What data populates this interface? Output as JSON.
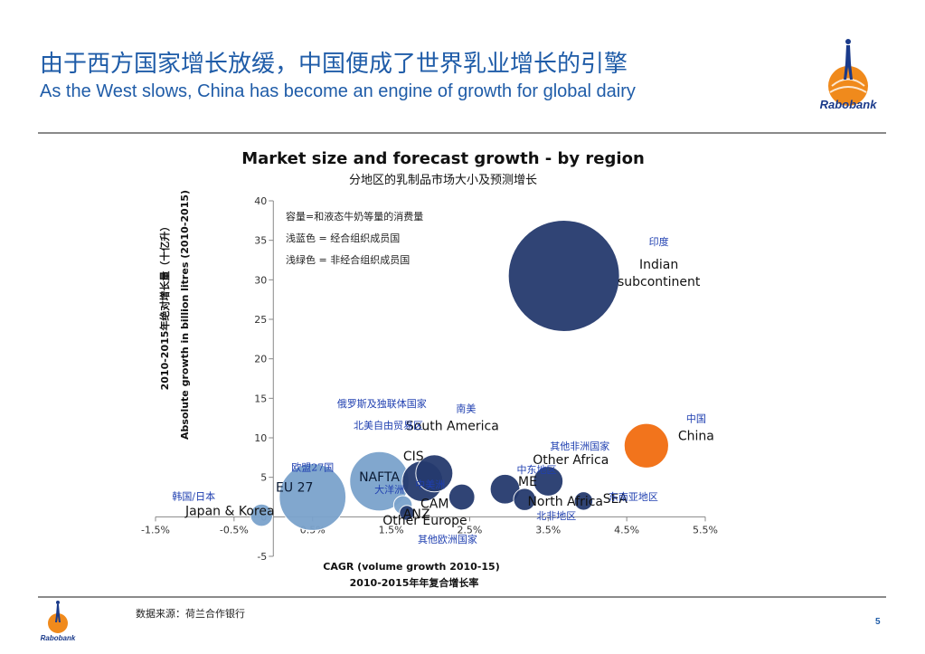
{
  "header": {
    "title_cn": "由于西方国家增长放缓，中国便成了世界乳业增长的引擎",
    "title_en": "As the West slows, China has become an engine of growth for global dairy",
    "logo_text": "Rabobank"
  },
  "footer": {
    "source": "数据来源：荷兰合作银行",
    "page_number": "5",
    "logo_text": "Rabobank"
  },
  "colors": {
    "title_blue": "#1f5ca8",
    "member_bubble": "#7ba3cc",
    "nonmember_bubble": "#253a6e",
    "china_bubble": "#f26d10",
    "cn_annotation": "#1f3fb0"
  },
  "chart_data": {
    "type": "scatter",
    "title": "Market size and forecast growth - by region",
    "subtitle": "分地区的乳制品市场大小及预测增长",
    "xlabel": "CAGR (volume growth 2010-15)",
    "xlabel_cn": "2010-2015年年复合增长率",
    "ylabel": "Absolute growth in billion litres (2010-2015)",
    "ylabel_cn": "2010-2015年绝对增长量（十亿升）",
    "xlim": [
      -1.5,
      5.5
    ],
    "ylim": [
      -5,
      40
    ],
    "x_ticks": [
      "-1.5%",
      "-0.5%",
      "0.5%",
      "1.5%",
      "2.5%",
      "3.5%",
      "4.5%",
      "5.5%"
    ],
    "y_ticks": [
      "40",
      "35",
      "30",
      "25",
      "20",
      "15",
      "10",
      "5",
      "0",
      "-5"
    ],
    "legend_notes": [
      "容量=和液态牛奶等量的消费量",
      "浅蓝色 = 经合组织成员国",
      "浅绿色 = 非经合组织成员国"
    ],
    "points": [
      {
        "label": "Indian subcontinent",
        "label_cn": "印度",
        "x": 3.7,
        "y": 30.5,
        "size": 15,
        "group": "nonmember"
      },
      {
        "label": "China",
        "label_cn": "中国",
        "x": 4.75,
        "y": 9,
        "size": 6,
        "group": "china"
      },
      {
        "label": "South America",
        "label_cn": "南美",
        "x": 2.05,
        "y": 5.5,
        "size": 5,
        "group": "nonmember"
      },
      {
        "label": "CIS",
        "label_cn": "俄罗斯及独联体国家",
        "x": 1.9,
        "y": 4.5,
        "size": 5.5,
        "group": "nonmember"
      },
      {
        "label": "Other Africa",
        "label_cn": "其他非洲国家",
        "x": 3.5,
        "y": 4.5,
        "size": 4,
        "group": "nonmember"
      },
      {
        "label": "NAFTA",
        "label_cn": "北美自由贸易区",
        "x": 1.35,
        "y": 4.5,
        "size": 8,
        "group": "member"
      },
      {
        "label": "EU 27",
        "label_cn": "欧盟27国",
        "x": 0.5,
        "y": 2.5,
        "size": 9,
        "group": "member"
      },
      {
        "label": "Japan & Korea",
        "label_cn": "韩国/日本",
        "x": -0.15,
        "y": 0.2,
        "size": 3,
        "group": "member"
      },
      {
        "label": "ME",
        "label_cn": "中东地区",
        "x": 2.95,
        "y": 3.5,
        "size": 4,
        "group": "nonmember"
      },
      {
        "label": "SEA",
        "label_cn": "东南亚地区",
        "x": 3.95,
        "y": 2,
        "size": 2.5,
        "group": "nonmember"
      },
      {
        "label": "North Africa",
        "label_cn": "北非地区",
        "x": 3.2,
        "y": 2.2,
        "size": 3,
        "group": "nonmember"
      },
      {
        "label": "CAM",
        "label_cn": "中美洲",
        "x": 2.4,
        "y": 2.5,
        "size": 3.5,
        "group": "nonmember"
      },
      {
        "label": "ANZ",
        "label_cn": "大洋洲",
        "x": 1.65,
        "y": 1.5,
        "size": 2.5,
        "group": "member"
      },
      {
        "label": "Other Europe",
        "label_cn": "其他欧洲国家",
        "x": 1.7,
        "y": 0.5,
        "size": 2,
        "group": "nonmember"
      }
    ]
  }
}
